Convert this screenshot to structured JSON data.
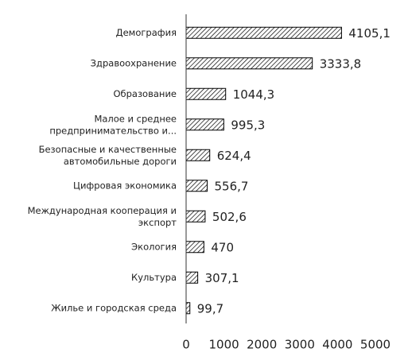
{
  "chart_data": {
    "type": "bar",
    "orientation": "horizontal",
    "categories": [
      "Демография",
      "Здравоохранение",
      "Образование",
      "Малое и среднее\nпредпринимательство и...",
      "Безопасные и качественные\nавтомобильные дороги",
      "Цифровая экономика",
      "Международная кооперация и\nэкспорт",
      "Экология",
      "Культура",
      "Жилье и городская среда"
    ],
    "values": [
      4105.1,
      3333.8,
      1044.3,
      995.3,
      624.4,
      556.7,
      502.6,
      470,
      307.1,
      99.7
    ],
    "value_labels": [
      "4105,1",
      "3333,8",
      "1044,3",
      "995,3",
      "624,4",
      "556,7",
      "502,6",
      "470",
      "307,1",
      "99,7"
    ],
    "color": "#000000",
    "xlim": [
      0,
      5000
    ],
    "xticks": [
      0,
      1000,
      2000,
      3000,
      4000,
      5000
    ],
    "grid": false
  }
}
